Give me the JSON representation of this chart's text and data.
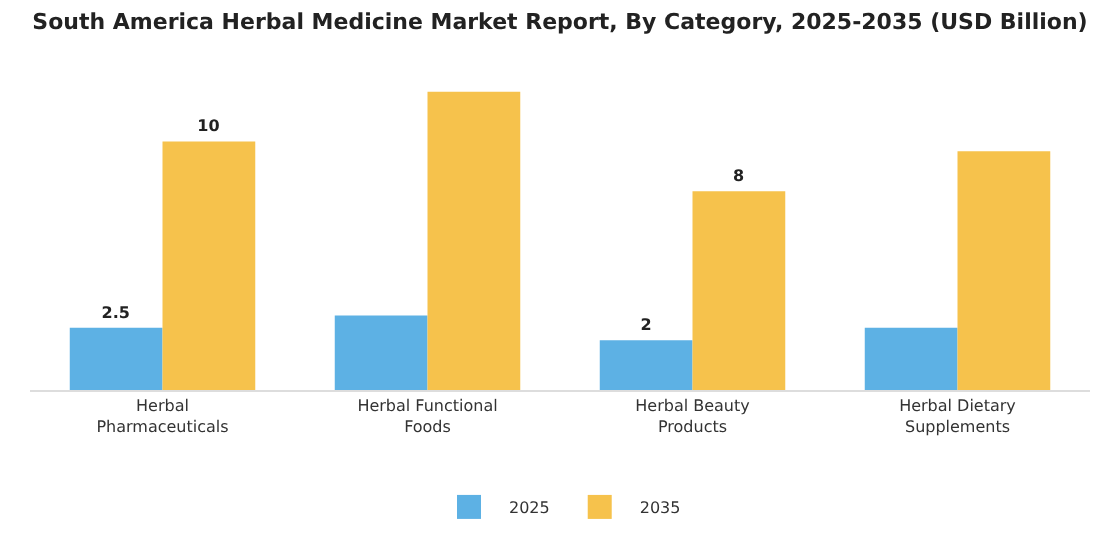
{
  "chart_data": {
    "type": "bar",
    "title": "South America Herbal Medicine Market Report, By Category, 2025-2035 (USD Billion)",
    "categories": [
      "Herbal Pharmaceuticals",
      "Herbal Functional Foods",
      "Herbal Beauty Products",
      "Herbal Dietary Supplements"
    ],
    "series": [
      {
        "name": "2025",
        "color": "#5db1e4",
        "values": [
          2.5,
          3.0,
          2,
          2.5
        ],
        "value_labels": [
          "2.5",
          null,
          "2",
          null
        ]
      },
      {
        "name": "2035",
        "color": "#f6c24c",
        "values": [
          10,
          12.0,
          8,
          9.6
        ],
        "value_labels": [
          "10",
          null,
          "8",
          null
        ]
      }
    ],
    "legend": "bottom",
    "grid": false
  }
}
